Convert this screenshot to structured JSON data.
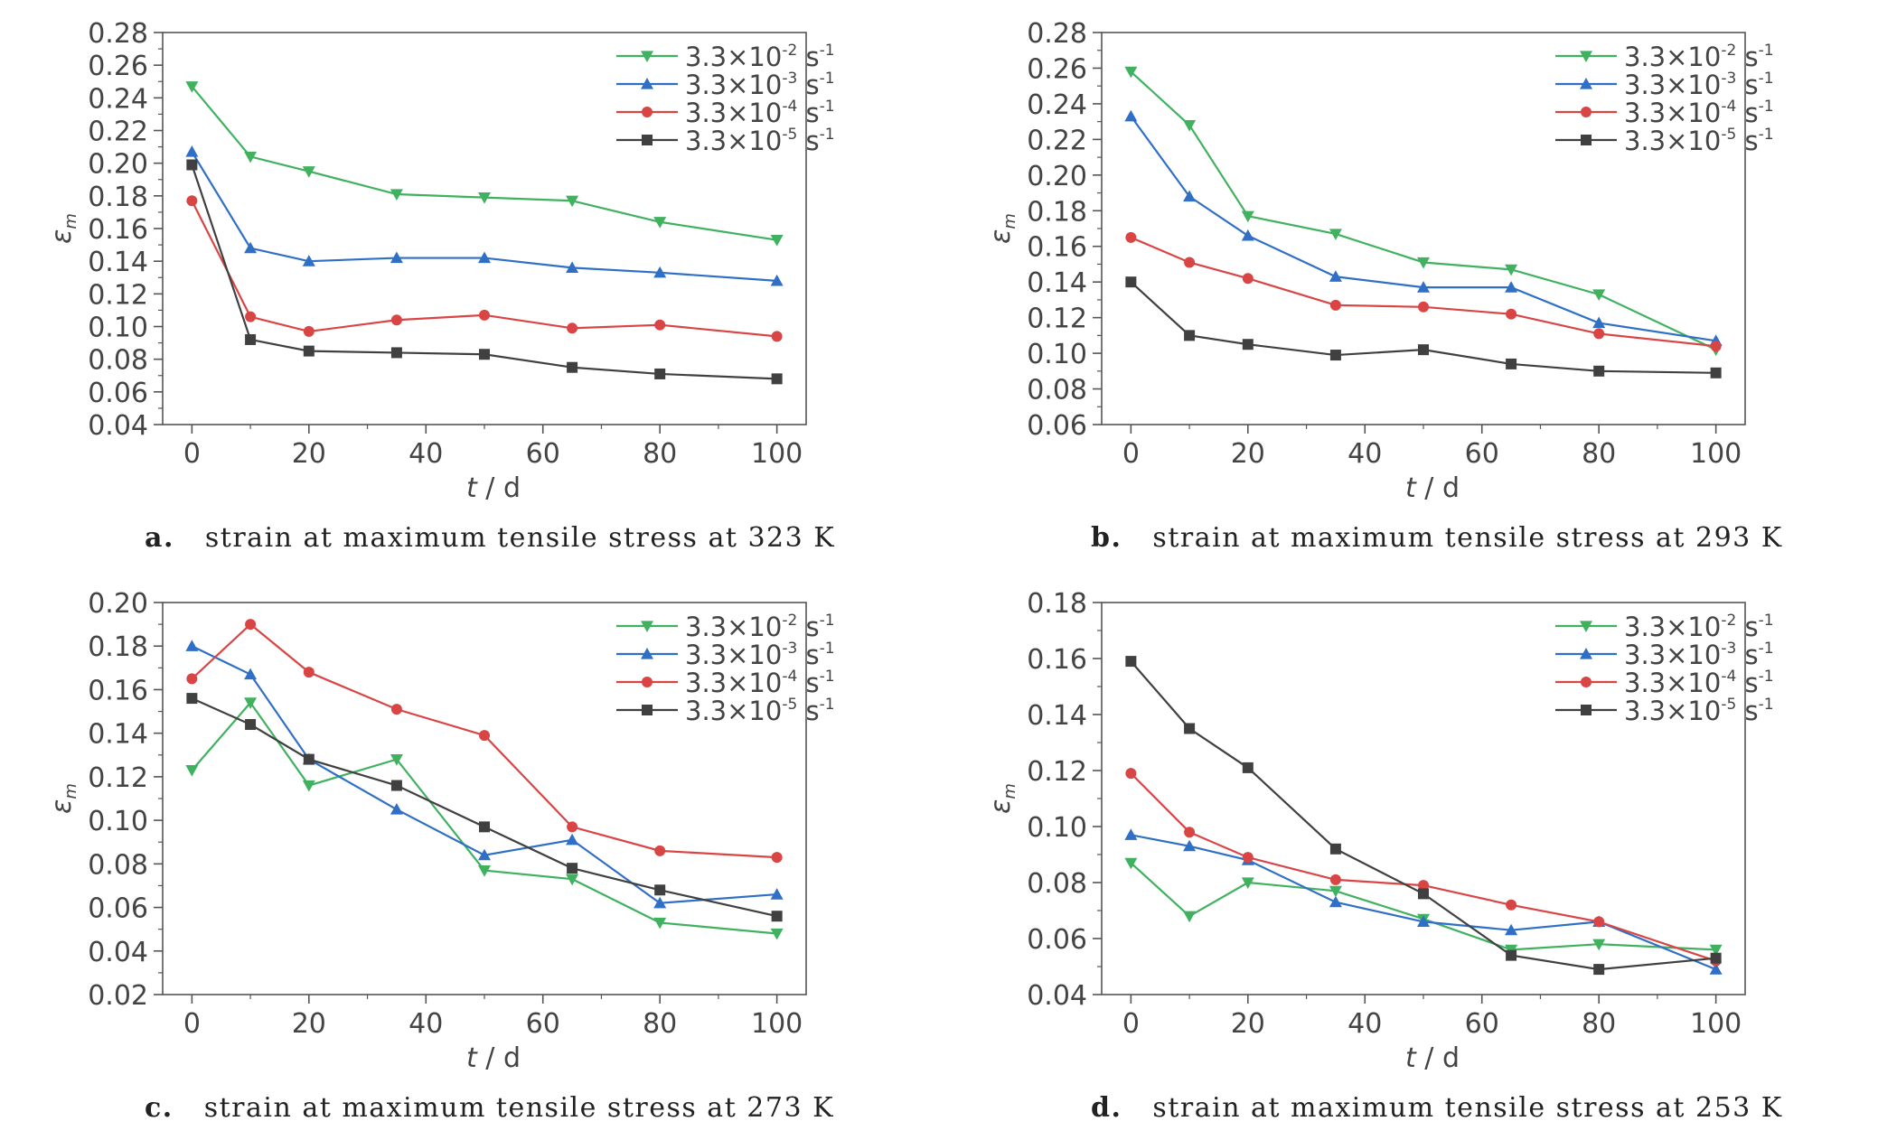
{
  "chart_data": [
    {
      "panel": "a",
      "type": "line",
      "caption_letter": "a.",
      "caption_text": "strain at maximum tensile stress at 323 K",
      "xlabel_italic": "t",
      "xlabel_unit": " / d",
      "ylabel": "ε",
      "ylabel_sub": "m",
      "ylim": [
        0.04,
        0.28
      ],
      "yticks": [
        "0.04",
        "0.06",
        "0.08",
        "0.10",
        "0.12",
        "0.14",
        "0.16",
        "0.18",
        "0.20",
        "0.22",
        "0.24",
        "0.26",
        "0.28"
      ],
      "xlim": [
        -5,
        105
      ],
      "xticks": [
        "0",
        "20",
        "40",
        "60",
        "80",
        "100"
      ],
      "grid": false,
      "legend": "top-right",
      "x": [
        0,
        10,
        20,
        35,
        50,
        65,
        80,
        100
      ],
      "series": [
        {
          "name_base": "3.3×10",
          "name_exp": "-2",
          "name_unit": " s",
          "name_unit_exp": "-1",
          "color": "#3fb15f",
          "marker": "triangle-down",
          "values": [
            0.247,
            0.204,
            0.195,
            0.181,
            0.179,
            0.177,
            0.164,
            0.153
          ]
        },
        {
          "name_base": "3.3×10",
          "name_exp": "-3",
          "name_unit": " s",
          "name_unit_exp": "-1",
          "color": "#2f6fc6",
          "marker": "triangle-up",
          "values": [
            0.207,
            0.148,
            0.14,
            0.142,
            0.142,
            0.136,
            0.133,
            0.128
          ]
        },
        {
          "name_base": "3.3×10",
          "name_exp": "-4",
          "name_unit": " s",
          "name_unit_exp": "-1",
          "color": "#d94545",
          "marker": "circle",
          "values": [
            0.177,
            0.106,
            0.097,
            0.104,
            0.107,
            0.099,
            0.101,
            0.094
          ]
        },
        {
          "name_base": "3.3×10",
          "name_exp": "-5",
          "name_unit": " s",
          "name_unit_exp": "-1",
          "color": "#404040",
          "marker": "square",
          "values": [
            0.199,
            0.092,
            0.085,
            0.084,
            0.083,
            0.075,
            0.071,
            0.068
          ]
        }
      ]
    },
    {
      "panel": "b",
      "type": "line",
      "caption_letter": "b.",
      "caption_text": "strain at maximum tensile stress at 293 K",
      "xlabel_italic": "t",
      "xlabel_unit": " / d",
      "ylabel": "ε",
      "ylabel_sub": "m",
      "ylim": [
        0.06,
        0.28
      ],
      "yticks": [
        "0.06",
        "0.08",
        "0.10",
        "0.12",
        "0.14",
        "0.16",
        "0.18",
        "0.20",
        "0.22",
        "0.24",
        "0.26",
        "0.28"
      ],
      "xlim": [
        -5,
        105
      ],
      "xticks": [
        "0",
        "20",
        "40",
        "60",
        "80",
        "100"
      ],
      "grid": false,
      "legend": "top-right",
      "x": [
        0,
        10,
        20,
        35,
        50,
        65,
        80,
        100
      ],
      "series": [
        {
          "name_base": "3.3×10",
          "name_exp": "-2",
          "name_unit": " s",
          "name_unit_exp": "-1",
          "color": "#3fb15f",
          "marker": "triangle-down",
          "values": [
            0.258,
            0.228,
            0.177,
            0.167,
            0.151,
            0.147,
            0.133,
            0.102
          ]
        },
        {
          "name_base": "3.3×10",
          "name_exp": "-3",
          "name_unit": " s",
          "name_unit_exp": "-1",
          "color": "#2f6fc6",
          "marker": "triangle-up",
          "values": [
            0.233,
            0.188,
            0.166,
            0.143,
            0.137,
            0.137,
            0.117,
            0.107
          ]
        },
        {
          "name_base": "3.3×10",
          "name_exp": "-4",
          "name_unit": " s",
          "name_unit_exp": "-1",
          "color": "#d94545",
          "marker": "circle",
          "values": [
            0.165,
            0.151,
            0.142,
            0.127,
            0.126,
            0.122,
            0.111,
            0.104
          ]
        },
        {
          "name_base": "3.3×10",
          "name_exp": "-5",
          "name_unit": " s",
          "name_unit_exp": "-1",
          "color": "#404040",
          "marker": "square",
          "values": [
            0.14,
            0.11,
            0.105,
            0.099,
            0.102,
            0.094,
            0.09,
            0.089
          ]
        }
      ]
    },
    {
      "panel": "c",
      "type": "line",
      "caption_letter": "c.",
      "caption_text": "strain at maximum tensile stress at 273 K",
      "xlabel_italic": "t",
      "xlabel_unit": " / d",
      "ylabel": "ε",
      "ylabel_sub": "m",
      "ylim": [
        0.02,
        0.2
      ],
      "yticks": [
        "0.02",
        "0.04",
        "0.06",
        "0.08",
        "0.10",
        "0.12",
        "0.14",
        "0.16",
        "0.18",
        "0.20"
      ],
      "xlim": [
        -5,
        105
      ],
      "xticks": [
        "0",
        "20",
        "40",
        "60",
        "80",
        "100"
      ],
      "grid": false,
      "legend": "top-right",
      "x": [
        0,
        10,
        20,
        35,
        50,
        65,
        80,
        100
      ],
      "series": [
        {
          "name_base": "3.3×10",
          "name_exp": "-2",
          "name_unit": " s",
          "name_unit_exp": "-1",
          "color": "#3fb15f",
          "marker": "triangle-down",
          "values": [
            0.123,
            0.154,
            0.116,
            0.128,
            0.077,
            0.073,
            0.053,
            0.048
          ]
        },
        {
          "name_base": "3.3×10",
          "name_exp": "-3",
          "name_unit": " s",
          "name_unit_exp": "-1",
          "color": "#2f6fc6",
          "marker": "triangle-up",
          "values": [
            0.18,
            0.167,
            0.128,
            0.105,
            0.084,
            0.091,
            0.062,
            0.066
          ]
        },
        {
          "name_base": "3.3×10",
          "name_exp": "-4",
          "name_unit": " s",
          "name_unit_exp": "-1",
          "color": "#d94545",
          "marker": "circle",
          "values": [
            0.165,
            0.19,
            0.168,
            0.151,
            0.139,
            0.097,
            0.086,
            0.083
          ]
        },
        {
          "name_base": "3.3×10",
          "name_exp": "-5",
          "name_unit": " s",
          "name_unit_exp": "-1",
          "color": "#404040",
          "marker": "square",
          "values": [
            0.156,
            0.144,
            0.128,
            0.116,
            0.097,
            0.078,
            0.068,
            0.056
          ]
        }
      ]
    },
    {
      "panel": "d",
      "type": "line",
      "caption_letter": "d.",
      "caption_text": "strain at maximum tensile stress at 253 K",
      "xlabel_italic": "t",
      "xlabel_unit": " / d",
      "ylabel": "ε",
      "ylabel_sub": "m",
      "ylim": [
        0.04,
        0.18
      ],
      "yticks": [
        "0.04",
        "0.06",
        "0.08",
        "0.10",
        "0.12",
        "0.14",
        "0.16",
        "0.18"
      ],
      "xlim": [
        -5,
        105
      ],
      "xticks": [
        "0",
        "20",
        "40",
        "60",
        "80",
        "100"
      ],
      "grid": false,
      "legend": "top-right",
      "x": [
        0,
        10,
        20,
        35,
        50,
        65,
        80,
        100
      ],
      "series": [
        {
          "name_base": "3.3×10",
          "name_exp": "-2",
          "name_unit": " s",
          "name_unit_exp": "-1",
          "color": "#3fb15f",
          "marker": "triangle-down",
          "values": [
            0.087,
            0.068,
            0.08,
            0.077,
            0.067,
            0.056,
            0.058,
            0.056
          ]
        },
        {
          "name_base": "3.3×10",
          "name_exp": "-3",
          "name_unit": " s",
          "name_unit_exp": "-1",
          "color": "#2f6fc6",
          "marker": "triangle-up",
          "values": [
            0.097,
            0.093,
            0.088,
            0.073,
            0.066,
            0.063,
            0.066,
            0.049
          ]
        },
        {
          "name_base": "3.3×10",
          "name_exp": "-4",
          "name_unit": " s",
          "name_unit_exp": "-1",
          "color": "#d94545",
          "marker": "circle",
          "values": [
            0.119,
            0.098,
            0.089,
            0.081,
            0.079,
            0.072,
            0.066,
            0.052
          ]
        },
        {
          "name_base": "3.3×10",
          "name_exp": "-5",
          "name_unit": " s",
          "name_unit_exp": "-1",
          "color": "#404040",
          "marker": "square",
          "values": [
            0.159,
            0.135,
            0.121,
            0.092,
            0.076,
            0.054,
            0.049,
            0.053
          ]
        }
      ]
    }
  ]
}
